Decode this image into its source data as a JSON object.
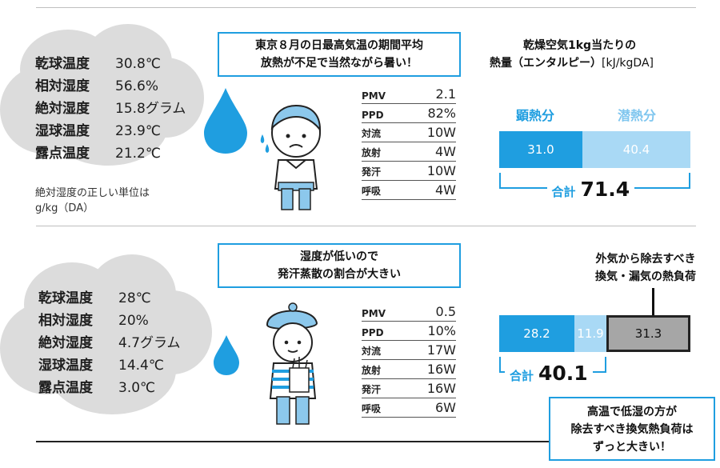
{
  "top": {
    "conditions": [
      {
        "label": "乾球温度",
        "value": "30.8℃"
      },
      {
        "label": "相対湿度",
        "value": "56.6%"
      },
      {
        "label": "絶対湿度",
        "value": "15.8グラム"
      },
      {
        "label": "湿球温度",
        "value": "23.9℃"
      },
      {
        "label": "露点温度",
        "value": "21.2℃"
      }
    ],
    "note_line1": "絶対湿度の正しい単位は",
    "note_line2": "g/kg（DA）",
    "speech_line1": "東京８月の日最高気温の期間平均",
    "speech_line2": "放熱が不足で当然ながら暑い！",
    "comfort": [
      {
        "key": "PMV",
        "value": "2.1"
      },
      {
        "key": "PPD",
        "value": "82%"
      },
      {
        "key": "対流",
        "value": "10W"
      },
      {
        "key": "放射",
        "value": "4W"
      },
      {
        "key": "発汗",
        "value": "10W"
      },
      {
        "key": "呼吸",
        "value": "4W"
      }
    ]
  },
  "enthalpy": {
    "title_line1": "乾燥空気1kg当たりの",
    "title_line2": "熱量（エンタルピー）",
    "unit": "[kJ/kgDA]",
    "legend_sensible": "顕熱分",
    "legend_latent": "潜熱分",
    "total_label": "合計"
  },
  "bottom": {
    "conditions": [
      {
        "label": "乾球温度",
        "value": "28℃"
      },
      {
        "label": "相対湿度",
        "value": "20%"
      },
      {
        "label": "絶対湿度",
        "value": "4.7グラム"
      },
      {
        "label": "湿球温度",
        "value": "14.4℃"
      },
      {
        "label": "露点温度",
        "value": "3.0℃"
      }
    ],
    "speech_line1": "湿度が低いので",
    "speech_line2": "発汗蒸散の割合が大きい",
    "comfort": [
      {
        "key": "PMV",
        "value": "0.5"
      },
      {
        "key": "PPD",
        "value": "10%"
      },
      {
        "key": "対流",
        "value": "17W"
      },
      {
        "key": "放射",
        "value": "16W"
      },
      {
        "key": "発汗",
        "value": "16W"
      },
      {
        "key": "呼吸",
        "value": "6W"
      }
    ],
    "load_label_line1": "外気から除去すべき",
    "load_label_line2": "換気・漏気の熱負荷",
    "callout_line1": "高温で低湿の方が",
    "callout_line2": "除去すべき換気熱負荷は",
    "callout_line3": "ずっと大きい！"
  },
  "chart_data": [
    {
      "type": "bar",
      "orientation": "horizontal-stacked",
      "series": [
        {
          "name": "顕熱分",
          "value": 31.0,
          "label": "31.0"
        },
        {
          "name": "潜熱分",
          "value": 40.4,
          "label": "40.4"
        }
      ],
      "total": 71.4,
      "total_label": "71.4"
    },
    {
      "type": "bar",
      "orientation": "horizontal-stacked",
      "series": [
        {
          "name": "顕熱分",
          "value": 28.2,
          "label": "28.2"
        },
        {
          "name": "潜熱分",
          "value": 11.9,
          "label": "11.9"
        },
        {
          "value": 31.3,
          "label": "31.3"
        }
      ],
      "total": 40.1,
      "total_label": "40.1"
    }
  ],
  "colors": {
    "sensible": "#1f9ee0",
    "latent": "#a9d9f5",
    "load": "#a6a6a6",
    "accent": "#1f9ee0",
    "cloud": "#dcdcdc"
  }
}
